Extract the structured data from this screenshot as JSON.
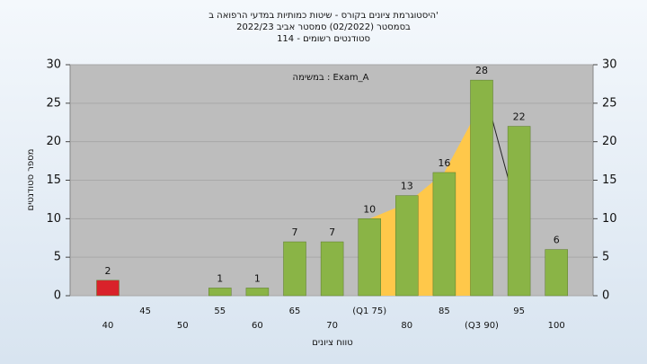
{
  "chart_data": {
    "type": "bar",
    "title": "היסטוגרמת ציונים בקורס - שיטות כמותיות במדעי הרפואה ב'",
    "subtitle": "בסמסטר (02/2022) סמסטר אביב 2022/23",
    "subtitle2": "סטודנטים רשומים - 114",
    "annotation": "במשימה : Exam_A",
    "xlabel": "טווח ציונים",
    "ylabel": "מספר סטודנטים",
    "categories": [
      "40",
      "45",
      "50",
      "55",
      "60",
      "65",
      "70",
      "(Q1 75)",
      "80",
      "85",
      "(Q3 90)",
      "95",
      "100"
    ],
    "values": [
      2,
      null,
      null,
      1,
      1,
      7,
      7,
      10,
      13,
      16,
      28,
      22,
      6
    ],
    "colors": [
      "#d9222a",
      "#8ab446",
      "#8ab446",
      "#8ab446",
      "#8ab446",
      "#8ab446",
      "#8ab446",
      "#8ab446",
      "#8ab446",
      "#8ab446",
      "#8ab446",
      "#8ab446",
      "#8ab446"
    ],
    "area_x": [
      75,
      80,
      85,
      90
    ],
    "area_values": [
      10,
      12,
      16,
      25
    ],
    "area_color": "#ffc84a",
    "line_x": [
      90,
      95
    ],
    "line_values": [
      28,
      10
    ],
    "line_color": "#222222",
    "ylim": [
      0,
      30
    ],
    "yticks": [
      0,
      5,
      10,
      15,
      20,
      25,
      30
    ],
    "y2lim": [
      0,
      30
    ],
    "y2ticks": [
      0,
      5,
      10,
      15,
      20,
      25,
      30
    ],
    "grid": true
  }
}
